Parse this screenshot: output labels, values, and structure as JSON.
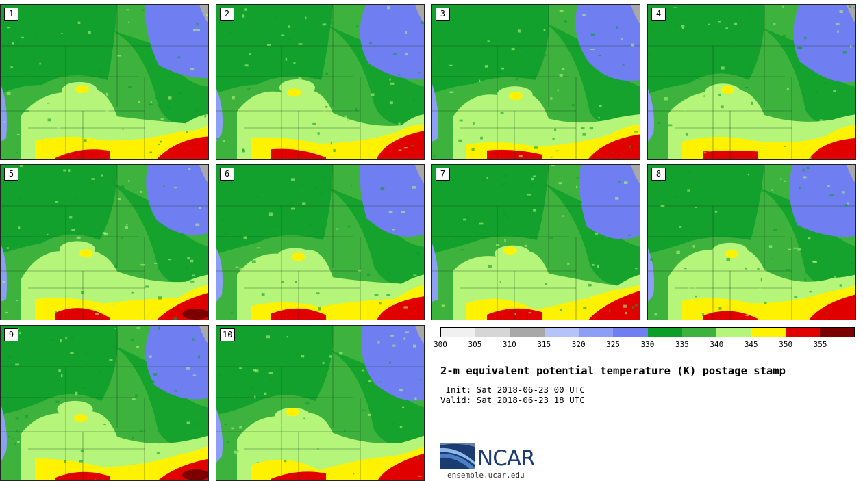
{
  "panels": [
    {
      "label": "1"
    },
    {
      "label": "2"
    },
    {
      "label": "3"
    },
    {
      "label": "4"
    },
    {
      "label": "5"
    },
    {
      "label": "6"
    },
    {
      "label": "7"
    },
    {
      "label": "8"
    },
    {
      "label": "9"
    },
    {
      "label": "10"
    }
  ],
  "colorbar": {
    "ticks": [
      "300",
      "305",
      "310",
      "315",
      "320",
      "325",
      "330",
      "335",
      "340",
      "345",
      "350",
      "355"
    ],
    "colors": [
      "#f0f0f0",
      "#d6d6d6",
      "#a8a8a8",
      "#b4c4f8",
      "#8c9ff5",
      "#6f7ef0",
      "#0b9e29",
      "#3db33d",
      "#b4f57a",
      "#fff200",
      "#e00000",
      "#7d0000"
    ]
  },
  "title": "2-m equivalent potential temperature (K) postage stamp",
  "init": " Init: Sat 2018-06-23 00 UTC",
  "valid": "Valid: Sat 2018-06-23 18 UTC",
  "logo": {
    "text": "NCAR",
    "site": "ensemble.ucar.edu"
  },
  "colors": {
    "green_dark": "#0b9e29",
    "green": "#3db33d",
    "light_green": "#b4f57a",
    "yellow": "#fff200",
    "red": "#e00000",
    "dark_red": "#7d0000",
    "blue": "#6f7ef0",
    "light_blue": "#8c9ff5",
    "gray": "#a8a8a8"
  }
}
